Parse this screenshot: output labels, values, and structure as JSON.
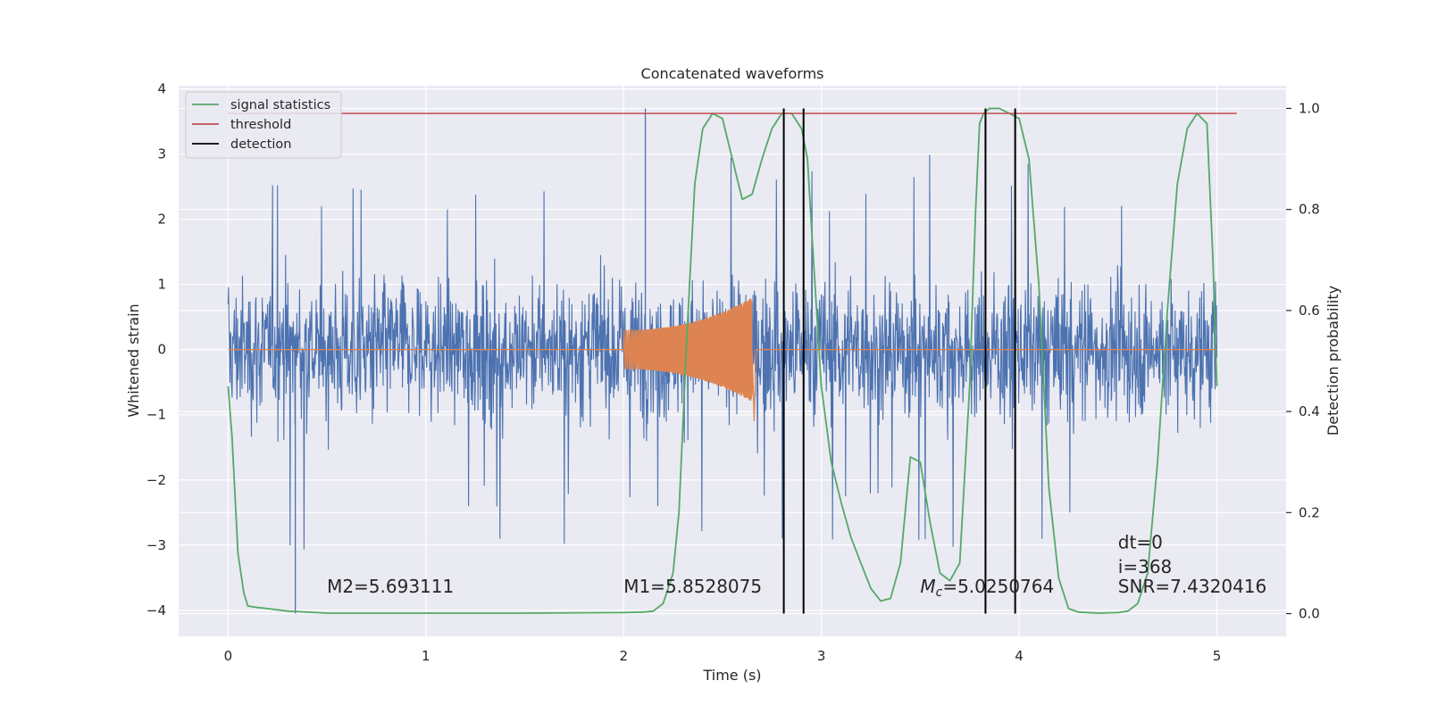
{
  "chart_data": {
    "type": "line",
    "title": "Concatenated waveforms",
    "xlabel": "Time (s)",
    "ylabel_left": "Whitened strain",
    "ylabel_right": "Detection probability",
    "xlim": [
      -0.25,
      5.35
    ],
    "ylim_left": [
      -4.4,
      4.05
    ],
    "ylim_right": [
      -0.045,
      1.045
    ],
    "x_ticks": [
      "0",
      "1",
      "2",
      "3",
      "4",
      "5"
    ],
    "y_ticks_left": [
      "4",
      "3",
      "2",
      "1",
      "0",
      "−1",
      "−2",
      "−3",
      "−4"
    ],
    "y_ticks_right": [
      "1.0",
      "0.8",
      "0.6",
      "0.4",
      "0.2",
      "0.0"
    ],
    "grid": true,
    "legend_position": "top-left",
    "colors": {
      "strain": "#4c72b0",
      "injected_signal": "#dd8452",
      "signal_statistics": "#55a868",
      "threshold": "#c44e52",
      "detection": "#000000",
      "plot_bg": "#eaeaf2",
      "grid": "#ffffff"
    },
    "legend": [
      {
        "label": "signal statistics",
        "color": "#55a868"
      },
      {
        "label": "threshold",
        "color": "#c44e52"
      },
      {
        "label": "detection",
        "color": "#000000"
      }
    ],
    "strain": {
      "x_range": [
        0,
        5
      ],
      "typical_amplitude": 1.2,
      "max_peak": 3.7,
      "min_trough": -4.05
    },
    "injected_signal": {
      "x_start": 2.0,
      "x_end": 2.65,
      "start_amplitude": 0.3,
      "peak_amplitude": 0.8,
      "min_value": -1.1
    },
    "signal_statistics": {
      "x": [
        0,
        0.02,
        0.05,
        0.08,
        0.1,
        0.15,
        0.2,
        0.3,
        0.5,
        1.0,
        1.5,
        2.0,
        2.1,
        2.15,
        2.2,
        2.25,
        2.28,
        2.32,
        2.36,
        2.4,
        2.45,
        2.5,
        2.55,
        2.6,
        2.65,
        2.7,
        2.75,
        2.8,
        2.85,
        2.9,
        2.93,
        2.96,
        3.0,
        3.05,
        3.1,
        3.15,
        3.2,
        3.25,
        3.3,
        3.35,
        3.4,
        3.45,
        3.5,
        3.55,
        3.6,
        3.65,
        3.7,
        3.75,
        3.78,
        3.8,
        3.82,
        3.85,
        3.9,
        3.95,
        4.0,
        4.05,
        4.1,
        4.15,
        4.2,
        4.25,
        4.3,
        4.4,
        4.5,
        4.55,
        4.6,
        4.65,
        4.7,
        4.75,
        4.8,
        4.85,
        4.9,
        4.95,
        4.98,
        5.0
      ],
      "y": [
        0.45,
        0.35,
        0.12,
        0.04,
        0.015,
        0.012,
        0.01,
        0.005,
        0.001,
        0.001,
        0.001,
        0.002,
        0.003,
        0.005,
        0.02,
        0.08,
        0.2,
        0.55,
        0.85,
        0.96,
        0.99,
        0.98,
        0.9,
        0.82,
        0.83,
        0.9,
        0.96,
        0.99,
        0.99,
        0.96,
        0.9,
        0.7,
        0.45,
        0.3,
        0.22,
        0.15,
        0.1,
        0.05,
        0.025,
        0.03,
        0.1,
        0.31,
        0.3,
        0.18,
        0.08,
        0.065,
        0.1,
        0.45,
        0.8,
        0.97,
        0.99,
        1.0,
        1.0,
        0.99,
        0.98,
        0.9,
        0.65,
        0.25,
        0.07,
        0.01,
        0.003,
        0.001,
        0.002,
        0.005,
        0.02,
        0.08,
        0.3,
        0.6,
        0.85,
        0.96,
        0.99,
        0.97,
        0.7,
        0.45
      ]
    },
    "threshold": {
      "value": 0.99,
      "x_range": [
        0,
        5.1
      ]
    },
    "detections": [
      2.81,
      2.91,
      3.83,
      3.98
    ],
    "annotations": [
      {
        "text": "M2=5.693111",
        "x": 0.5,
        "y": -3.73
      },
      {
        "text": "M1=5.8528075",
        "x": 2.0,
        "y": -3.73
      },
      {
        "text": "=5.0250764",
        "math_prefix": "M",
        "math_sub": "c",
        "x": 3.5,
        "y": -3.73
      },
      {
        "text": "dt=0",
        "x": 4.5,
        "y": -3.05
      },
      {
        "text": "i=368",
        "x": 4.5,
        "y": -3.43
      },
      {
        "text": "SNR=7.4320416",
        "x": 4.5,
        "y": -3.73
      }
    ]
  }
}
